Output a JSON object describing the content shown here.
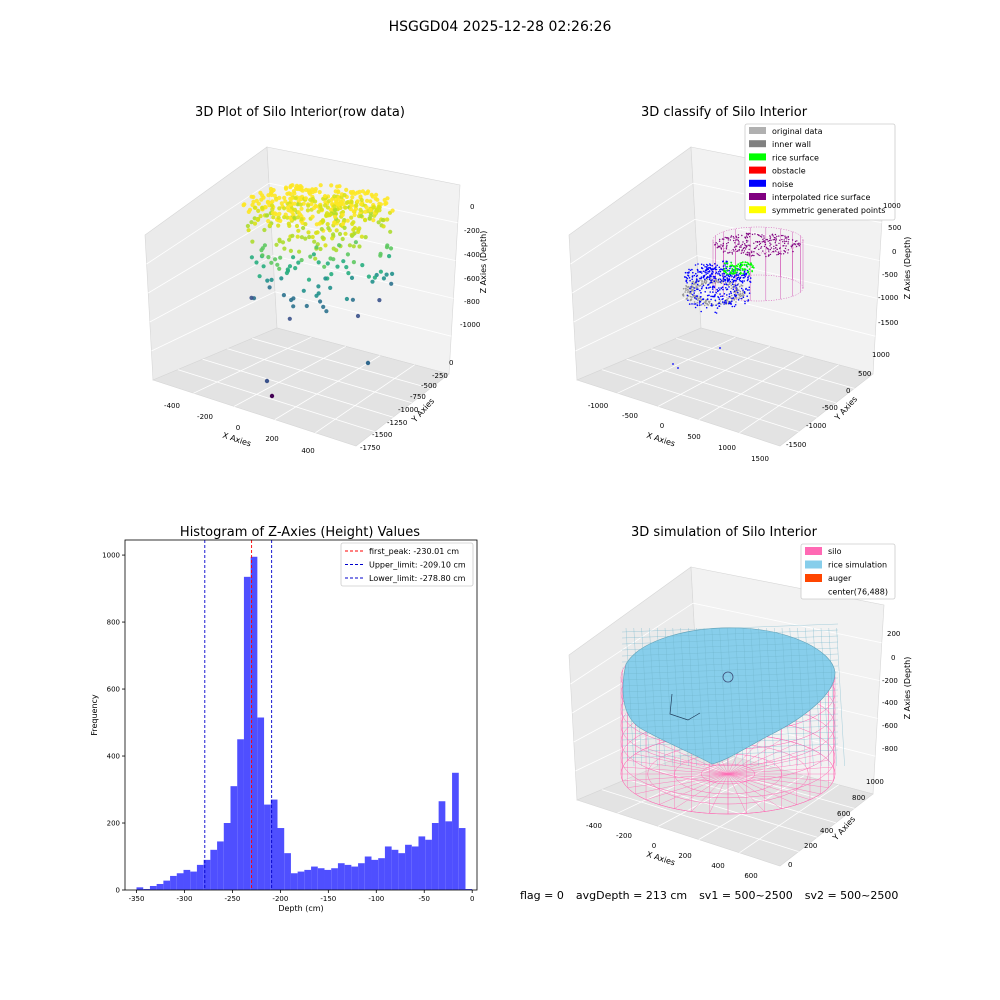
{
  "figure_title": "HSGGD04 2025-12-28 02:26:26",
  "colors": {
    "hist_bar": "#4b4bff",
    "first_peak_line": "#ff0000",
    "limit_line": "#0000cc",
    "silo_wire": "#ff69b4",
    "rice_sim": "#87ceeb",
    "auger": "#ff4500",
    "noise": "#0000ff",
    "rice_surface": "#00ff00",
    "original": "#b0b0b0",
    "inner_wall": "#808080",
    "obstacle": "#ff0000",
    "interpolated": "#800080",
    "symmetric": "#ffff00"
  },
  "chart_data": [
    {
      "type": "scatter",
      "subtype": "3d",
      "title": "3D Plot of Silo Interior(row data)",
      "xlabel": "X Axies",
      "ylabel": "Y Axies",
      "zlabel": "Z Axies (Depth)",
      "xticks": [
        "-400",
        "-200",
        "0",
        "200",
        "400"
      ],
      "yticks": [
        "0",
        "-250",
        "-500",
        "-750",
        "-1000",
        "-1250",
        "-1500",
        "-1750"
      ],
      "zticks": [
        "0",
        "-200",
        "-400",
        "-600",
        "-800",
        "-1000"
      ],
      "colormap": "viridis",
      "grid": true
    },
    {
      "type": "scatter",
      "subtype": "3d",
      "title": "3D classify of Silo Interior",
      "xlabel": "X Axies",
      "ylabel": "Y Axies",
      "zlabel": "Z Axies (Depth)",
      "xticks": [
        "-1000",
        "-500",
        "0",
        "500",
        "1000",
        "1500"
      ],
      "yticks": [
        "1000",
        "500",
        "0",
        "-500",
        "-1000",
        "-1500"
      ],
      "zticks": [
        "1000",
        "500",
        "0",
        "-500",
        "-1000",
        "-1500"
      ],
      "legend": [
        "original data",
        "inner wall",
        "rice surface",
        "obstacle",
        "noise",
        "interpolated rice surface",
        "symmetric generated points"
      ],
      "legend_colors": [
        "#b0b0b0",
        "#808080",
        "#00ff00",
        "#ff0000",
        "#0000ff",
        "#800080",
        "#ffff00"
      ],
      "legend_position": "top-right",
      "grid": true
    },
    {
      "type": "bar",
      "subtype": "histogram",
      "title": "Histogram of Z-Axies (Height) Values",
      "xlabel": "Depth (cm)",
      "ylabel": "Frequency",
      "xlim": [
        -362,
        5
      ],
      "ylim": [
        0,
        1045
      ],
      "xticks": [
        "-350",
        "-300",
        "-250",
        "-200",
        "-150",
        "-100",
        "-50",
        "0"
      ],
      "yticks": [
        "0",
        "200",
        "400",
        "600",
        "800",
        "1000"
      ],
      "bin_width": 7,
      "bin_starts": [
        -350,
        -343,
        -336,
        -329,
        -322,
        -315,
        -308,
        -301,
        -294,
        -287,
        -280,
        -273,
        -266,
        -259,
        -252,
        -245,
        -238,
        -231,
        -224,
        -217,
        -210,
        -203,
        -196,
        -189,
        -182,
        -175,
        -168,
        -161,
        -154,
        -147,
        -140,
        -133,
        -126,
        -119,
        -112,
        -105,
        -98,
        -91,
        -84,
        -77,
        -70,
        -63,
        -56,
        -49,
        -42,
        -35,
        -28,
        -21,
        -14,
        -7
      ],
      "values": [
        8,
        3,
        12,
        18,
        28,
        42,
        50,
        60,
        55,
        75,
        90,
        120,
        145,
        200,
        310,
        450,
        935,
        995,
        515,
        255,
        270,
        185,
        110,
        50,
        55,
        60,
        70,
        65,
        60,
        65,
        80,
        75,
        70,
        80,
        100,
        90,
        95,
        130,
        120,
        110,
        135,
        130,
        160,
        150,
        200,
        265,
        205,
        350,
        185,
        3
      ],
      "vlines": [
        {
          "label": "first_peak: -230.01 cm",
          "x": -230.01,
          "color": "#ff0000"
        },
        {
          "label": "Upper_limit: -209.10 cm",
          "x": -209.1,
          "color": "#0000cc"
        },
        {
          "label": "Lower_limit: -278.80 cm",
          "x": -278.8,
          "color": "#0000cc"
        }
      ],
      "legend_position": "top-right",
      "grid": false
    },
    {
      "type": "scatter",
      "subtype": "3d-surface",
      "title": "3D simulation of Silo Interior",
      "xlabel": "X Axies",
      "ylabel": "Y Axies",
      "zlabel": "Z Axies (Depth)",
      "xticks": [
        "-400",
        "-200",
        "0",
        "200",
        "400",
        "600"
      ],
      "yticks": [
        "0",
        "200",
        "400",
        "600",
        "800",
        "1000"
      ],
      "zticks": [
        "200",
        "0",
        "-200",
        "-400",
        "-600",
        "-800"
      ],
      "legend": [
        "silo",
        "rice simulation",
        "auger",
        "center(76,488)"
      ],
      "legend_colors": [
        "#ff69b4",
        "#87ceeb",
        "#ff4500",
        ""
      ],
      "legend_position": "top-right",
      "grid": true
    }
  ],
  "footer": {
    "flag": "flag = 0",
    "avg_depth": "avgDepth = 213 cm",
    "sv1": "sv1 = 500~2500",
    "sv2": "sv2 = 500~2500"
  }
}
